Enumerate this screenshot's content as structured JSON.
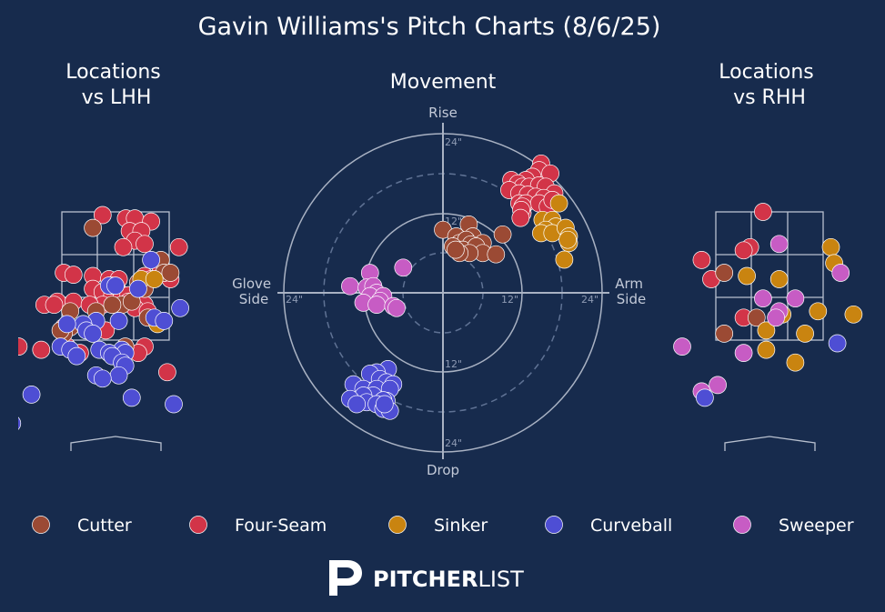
{
  "title": "Gavin Williams's Pitch Charts (8/6/25)",
  "colors": {
    "background": "#172b4d",
    "Cutter": "#9b4a34",
    "Four-Seam": "#d23448",
    "Sinker": "#c98410",
    "Curveball": "#4e4ed4",
    "Sweeper": "#c75cc4"
  },
  "chart_data": [
    {
      "type": "scatter",
      "title": "Locations\nvs LHH",
      "series": [
        {
          "name": "Four-Seam",
          "points": [
            [
              0.7,
              2.6
            ],
            [
              0.98,
              2.95
            ],
            [
              -0.2,
              3.45
            ],
            [
              0.16,
              3.4
            ],
            [
              0.3,
              3.4
            ],
            [
              0.55,
              3.35
            ],
            [
              0.22,
              3.2
            ],
            [
              0.4,
              3.2
            ],
            [
              0.3,
              3.05
            ],
            [
              0.45,
              3.0
            ],
            [
              0.12,
              2.95
            ],
            [
              -0.8,
              2.55
            ],
            [
              -0.65,
              2.52
            ],
            [
              -0.35,
              2.5
            ],
            [
              -0.1,
              2.45
            ],
            [
              0.05,
              2.45
            ],
            [
              0.45,
              2.5
            ],
            [
              0.55,
              2.45
            ],
            [
              0.85,
              2.45
            ],
            [
              -0.35,
              2.3
            ],
            [
              -0.2,
              2.25
            ],
            [
              0.05,
              2.25
            ],
            [
              -0.05,
              2.2
            ],
            [
              0.1,
              2.2
            ],
            [
              0.2,
              2.2
            ],
            [
              -0.9,
              2.1
            ],
            [
              -1.1,
              2.05
            ],
            [
              -0.95,
              2.05
            ],
            [
              -0.65,
              2.1
            ],
            [
              -0.2,
              2.05
            ],
            [
              -0.4,
              2.05
            ],
            [
              0.45,
              2.05
            ],
            [
              0.2,
              2.1
            ],
            [
              0.3,
              2.0
            ],
            [
              0.5,
              1.95
            ],
            [
              -0.8,
              1.7
            ],
            [
              -0.15,
              1.65
            ],
            [
              -0.75,
              1.4
            ],
            [
              0.45,
              1.4
            ],
            [
              0.35,
              1.3
            ],
            [
              -0.1,
              1.3
            ],
            [
              -0.55,
              1.3
            ],
            [
              -1.5,
              1.4
            ],
            [
              -1.15,
              1.35
            ],
            [
              0.8,
              1.0
            ]
          ]
        },
        {
          "name": "Cutter",
          "points": [
            [
              -0.35,
              3.25
            ],
            [
              0.7,
              2.75
            ],
            [
              0.75,
              2.55
            ],
            [
              0.85,
              2.55
            ],
            [
              0.35,
              2.4
            ],
            [
              0.45,
              2.3
            ],
            [
              -0.05,
              2.35
            ],
            [
              0.1,
              2.05
            ],
            [
              -0.05,
              2.05
            ],
            [
              0.25,
              2.1
            ],
            [
              -0.3,
              1.95
            ],
            [
              -0.7,
              1.95
            ],
            [
              0.5,
              1.85
            ],
            [
              -0.7,
              1.7
            ],
            [
              -0.8,
              1.6
            ],
            [
              -0.85,
              1.65
            ],
            [
              0.15,
              1.4
            ]
          ]
        },
        {
          "name": "Sinker",
          "points": [
            [
              0.4,
              2.45
            ],
            [
              0.6,
              2.45
            ],
            [
              0.65,
              1.75
            ]
          ]
        },
        {
          "name": "Curveball",
          "points": [
            [
              0.55,
              2.75
            ],
            [
              -0.1,
              2.35
            ],
            [
              0.0,
              2.35
            ],
            [
              0.35,
              2.3
            ],
            [
              1.0,
              2.0
            ],
            [
              0.6,
              1.85
            ],
            [
              0.75,
              1.8
            ],
            [
              0.05,
              1.8
            ],
            [
              -0.3,
              1.8
            ],
            [
              -0.5,
              1.75
            ],
            [
              -0.75,
              1.75
            ],
            [
              -0.45,
              1.65
            ],
            [
              -0.35,
              1.6
            ],
            [
              -0.85,
              1.4
            ],
            [
              -0.7,
              1.35
            ],
            [
              -0.25,
              1.35
            ],
            [
              0.1,
              1.35
            ],
            [
              -0.1,
              1.3
            ],
            [
              0.15,
              1.3
            ],
            [
              -0.05,
              1.25
            ],
            [
              -0.6,
              1.25
            ],
            [
              0.1,
              1.15
            ],
            [
              0.15,
              1.1
            ],
            [
              -0.3,
              0.95
            ],
            [
              0.05,
              0.95
            ],
            [
              -0.2,
              0.9
            ],
            [
              -1.3,
              0.65
            ],
            [
              0.25,
              0.6
            ],
            [
              0.9,
              0.5
            ],
            [
              -1.6,
              0.2
            ]
          ]
        },
        {
          "name": "Sweeper",
          "points": []
        }
      ]
    },
    {
      "type": "scatter",
      "title": "Movement",
      "axis_labels": {
        "top": "Rise",
        "bottom": "Drop",
        "left": "Glove\nSide",
        "right": "Arm\nSide"
      },
      "ring_labels": [
        "12\"",
        "24\""
      ],
      "xlim": [
        -24,
        24
      ],
      "ylim": [
        -24,
        24
      ],
      "series": [
        {
          "name": "Four-Seam",
          "points": [
            [
              14.8,
              19.5
            ],
            [
              14.5,
              18.5
            ],
            [
              16.2,
              18.0
            ],
            [
              13.5,
              17.5
            ],
            [
              12.5,
              17.0
            ],
            [
              10.3,
              17.0
            ],
            [
              11.3,
              16.5
            ],
            [
              12.0,
              16.0
            ],
            [
              13.0,
              16.0
            ],
            [
              14.5,
              16.2
            ],
            [
              15.5,
              16.0
            ],
            [
              16.8,
              15.0
            ],
            [
              10.0,
              15.5
            ],
            [
              11.5,
              15.0
            ],
            [
              12.8,
              14.8
            ],
            [
              14.0,
              14.5
            ],
            [
              15.2,
              14.3
            ],
            [
              11.5,
              13.5
            ],
            [
              12.5,
              13.5
            ],
            [
              14.5,
              13.5
            ],
            [
              12.0,
              12.0
            ],
            [
              12.0,
              13.0
            ],
            [
              11.8,
              12.5
            ],
            [
              15.8,
              13.0
            ],
            [
              16.5,
              14.0
            ],
            [
              11.7,
              11.3
            ]
          ]
        },
        {
          "name": "Sinker",
          "points": [
            [
              17.5,
              13.5
            ],
            [
              15.0,
              11.0
            ],
            [
              16.5,
              11.0
            ],
            [
              17.0,
              10.0
            ],
            [
              15.5,
              9.5
            ],
            [
              14.8,
              9.0
            ],
            [
              16.5,
              9.0
            ],
            [
              18.5,
              9.8
            ],
            [
              19.0,
              8.5
            ],
            [
              19.0,
              7.5
            ],
            [
              18.8,
              8.0
            ],
            [
              18.3,
              5.0
            ]
          ]
        },
        {
          "name": "Cutter",
          "points": [
            [
              0.0,
              9.5
            ],
            [
              3.9,
              10.3
            ],
            [
              9.0,
              8.8
            ],
            [
              2.0,
              8.5
            ],
            [
              4.5,
              8.5
            ],
            [
              2.5,
              7.5
            ],
            [
              3.5,
              8.0
            ],
            [
              4.2,
              7.3
            ],
            [
              6.0,
              7.5
            ],
            [
              1.5,
              7.0
            ],
            [
              3.0,
              6.5
            ],
            [
              5.0,
              7.0
            ],
            [
              6.0,
              6.0
            ],
            [
              4.0,
              6.0
            ],
            [
              2.5,
              6.0
            ],
            [
              8.0,
              5.8
            ],
            [
              1.9,
              6.5
            ]
          ]
        },
        {
          "name": "Sweeper",
          "points": [
            [
              -11.0,
              3.0
            ],
            [
              -6.0,
              3.8
            ],
            [
              -14.0,
              1.0
            ],
            [
              -11.5,
              0.8
            ],
            [
              -10.5,
              1.0
            ],
            [
              -10.0,
              0.0
            ],
            [
              -11.0,
              -0.5
            ],
            [
              -9.0,
              -0.5
            ],
            [
              -9.5,
              -1.2
            ],
            [
              -12.0,
              -1.5
            ],
            [
              -10.0,
              -1.8
            ],
            [
              -7.5,
              -2.0
            ],
            [
              -7.0,
              -2.3
            ]
          ]
        },
        {
          "name": "Curveball",
          "points": [
            [
              -8.3,
              -11.5
            ],
            [
              -10.0,
              -12.0
            ],
            [
              -11.0,
              -12.2
            ],
            [
              -9.5,
              -13.0
            ],
            [
              -8.5,
              -13.5
            ],
            [
              -13.5,
              -13.8
            ],
            [
              -7.5,
              -13.8
            ],
            [
              -12.0,
              -14.5
            ],
            [
              -10.0,
              -14.5
            ],
            [
              -8.0,
              -14.5
            ],
            [
              -10.5,
              -15.5
            ],
            [
              -12.0,
              -15.5
            ],
            [
              -14.0,
              -16.0
            ],
            [
              -11.5,
              -16.5
            ],
            [
              -8.5,
              -16.3
            ],
            [
              -13.0,
              -16.8
            ],
            [
              -9.0,
              -16.2
            ],
            [
              -10.0,
              -16.8
            ],
            [
              -9.0,
              -17.5
            ],
            [
              -8.0,
              -17.8
            ],
            [
              -8.8,
              -16.8
            ]
          ]
        }
      ]
    },
    {
      "type": "scatter",
      "title": "Locations\nvs RHH",
      "series": [
        {
          "name": "Four-Seam",
          "points": [
            [
              -0.1,
              3.5
            ],
            [
              -0.3,
              2.95
            ],
            [
              -0.4,
              2.9
            ],
            [
              -1.05,
              2.75
            ],
            [
              -0.9,
              2.45
            ],
            [
              -0.4,
              1.85
            ]
          ]
        },
        {
          "name": "Cutter",
          "points": [
            [
              -0.7,
              2.55
            ],
            [
              -0.2,
              1.85
            ],
            [
              -0.7,
              1.6
            ],
            [
              -1.7,
              1.6
            ]
          ]
        },
        {
          "name": "Sinker",
          "points": [
            [
              0.95,
              2.95
            ],
            [
              1.0,
              2.7
            ],
            [
              -0.35,
              2.5
            ],
            [
              0.15,
              2.45
            ],
            [
              0.75,
              1.95
            ],
            [
              1.3,
              1.9
            ],
            [
              0.2,
              1.9
            ],
            [
              -0.05,
              1.65
            ],
            [
              0.55,
              1.6
            ],
            [
              -0.05,
              1.35
            ],
            [
              0.4,
              1.15
            ]
          ]
        },
        {
          "name": "Sweeper",
          "points": [
            [
              0.15,
              3.0
            ],
            [
              1.1,
              2.55
            ],
            [
              -0.1,
              2.15
            ],
            [
              0.4,
              2.15
            ],
            [
              0.15,
              1.95
            ],
            [
              0.1,
              1.85
            ],
            [
              -1.35,
              1.4
            ],
            [
              -0.4,
              1.3
            ],
            [
              -0.8,
              0.8
            ],
            [
              -1.05,
              0.7
            ]
          ]
        },
        {
          "name": "Curveball",
          "points": [
            [
              1.05,
              1.45
            ],
            [
              -1.0,
              0.6
            ]
          ]
        }
      ]
    }
  ],
  "legend": [
    {
      "name": "Cutter"
    },
    {
      "name": "Four-Seam"
    },
    {
      "name": "Sinker"
    },
    {
      "name": "Curveball"
    },
    {
      "name": "Sweeper"
    }
  ],
  "logo": {
    "brand_bold": "PITCHER",
    "brand_light": "LIST"
  }
}
